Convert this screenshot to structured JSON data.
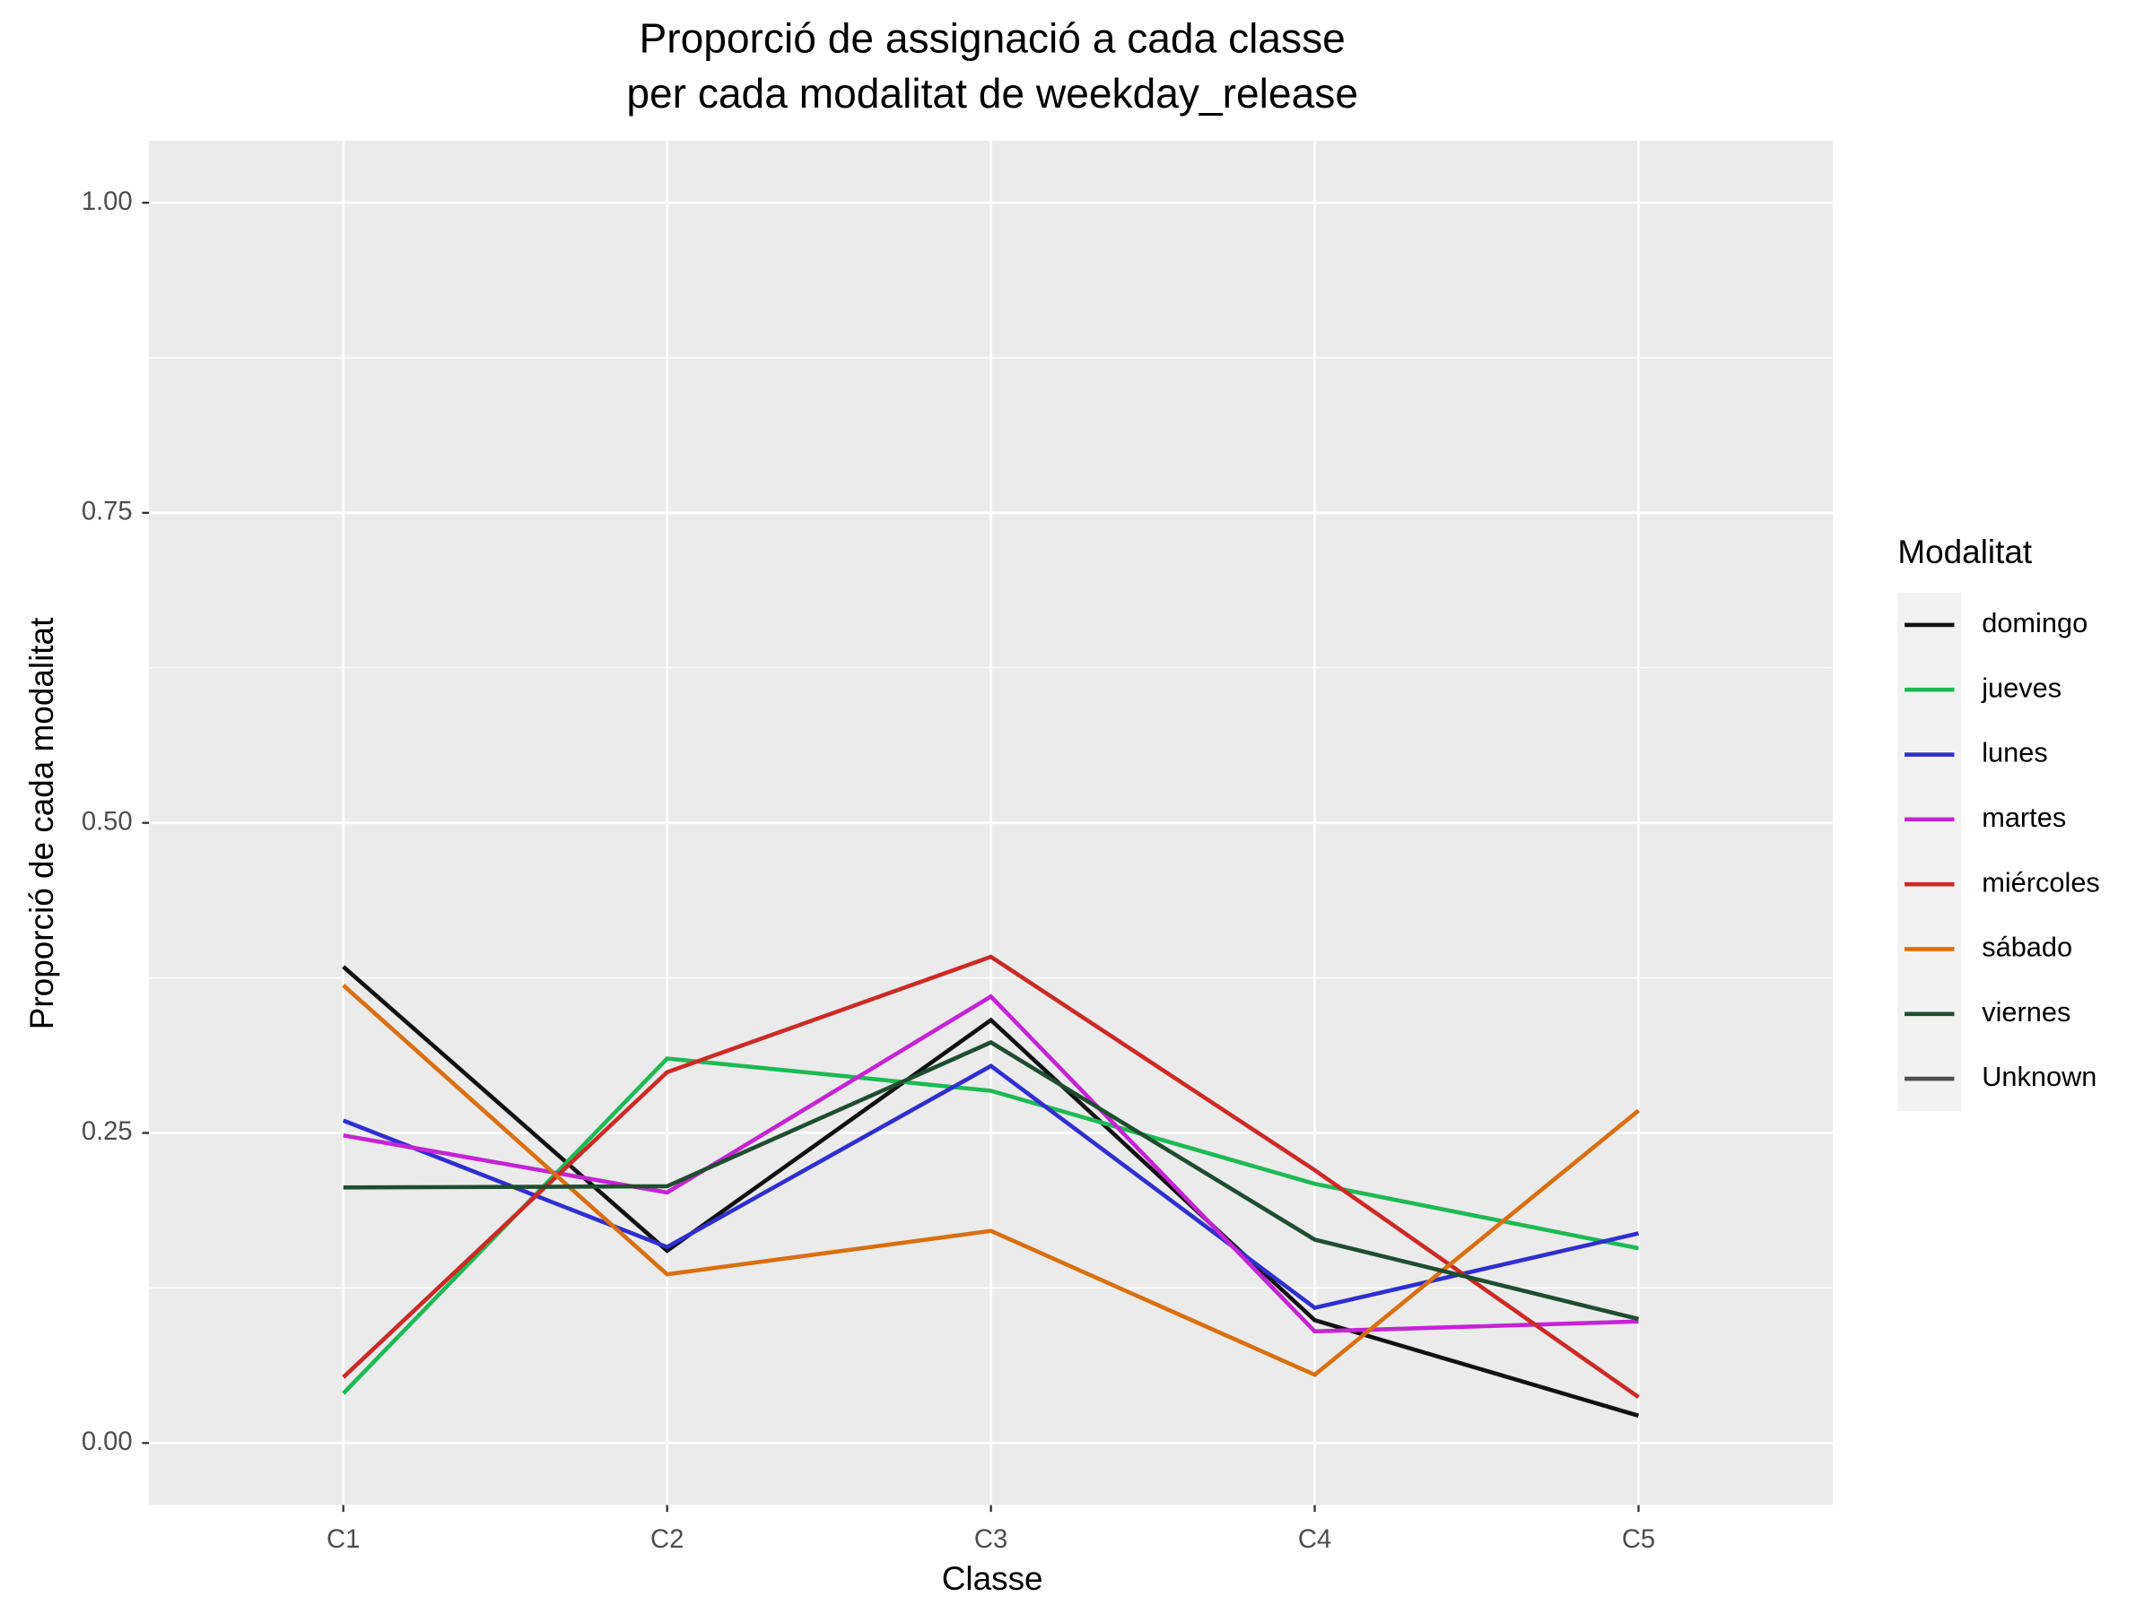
{
  "chart_data": {
    "type": "line",
    "title": [
      "Proporció de assignació a cada classe",
      "per cada modalitat de weekday_release"
    ],
    "x_label": "Classe",
    "y_label": "Proporció de cada modalitat",
    "categories": [
      "C1",
      "C2",
      "C3",
      "C4",
      "C5"
    ],
    "ylim": [
      -0.05,
      1.05
    ],
    "yticks": [
      {
        "value": 0,
        "label": "0.00"
      },
      0.25,
      {
        "value": 0.5,
        "label": "0.50"
      },
      0.75,
      {
        "value": 1,
        "label": "1.00"
      }
    ],
    "grid": true,
    "legend_title": "Modalitat",
    "legend_position": "right",
    "series": [
      {
        "name": "domingo",
        "color": "#111111",
        "values": [
          0.384,
          0.155,
          0.341,
          0.099,
          0.022
        ]
      },
      {
        "name": "jueves",
        "color": "#1db954",
        "values": [
          0.04,
          0.31,
          0.284,
          0.209,
          0.157
        ]
      },
      {
        "name": "lunes",
        "color": "#2f2fd0",
        "values": [
          0.26,
          0.158,
          0.304,
          0.109,
          0.169
        ]
      },
      {
        "name": "martes",
        "color": "#c424d4",
        "values": [
          0.248,
          0.202,
          0.36,
          0.09,
          0.098
        ]
      },
      {
        "name": "miércoles",
        "color": "#cc2a25",
        "values": [
          0.053,
          0.299,
          0.392,
          0.22,
          0.037
        ]
      },
      {
        "name": "sábado",
        "color": "#d96f0e",
        "values": [
          0.369,
          0.136,
          0.171,
          0.055,
          0.268
        ]
      },
      {
        "name": "viernes",
        "color": "#1f4d2f",
        "values": [
          0.206,
          0.207,
          0.323,
          0.164,
          0.1
        ]
      },
      {
        "name": "Unknown",
        "color": "#4d4d4d",
        "values": [
          null,
          null,
          null,
          null,
          null
        ]
      }
    ]
  }
}
